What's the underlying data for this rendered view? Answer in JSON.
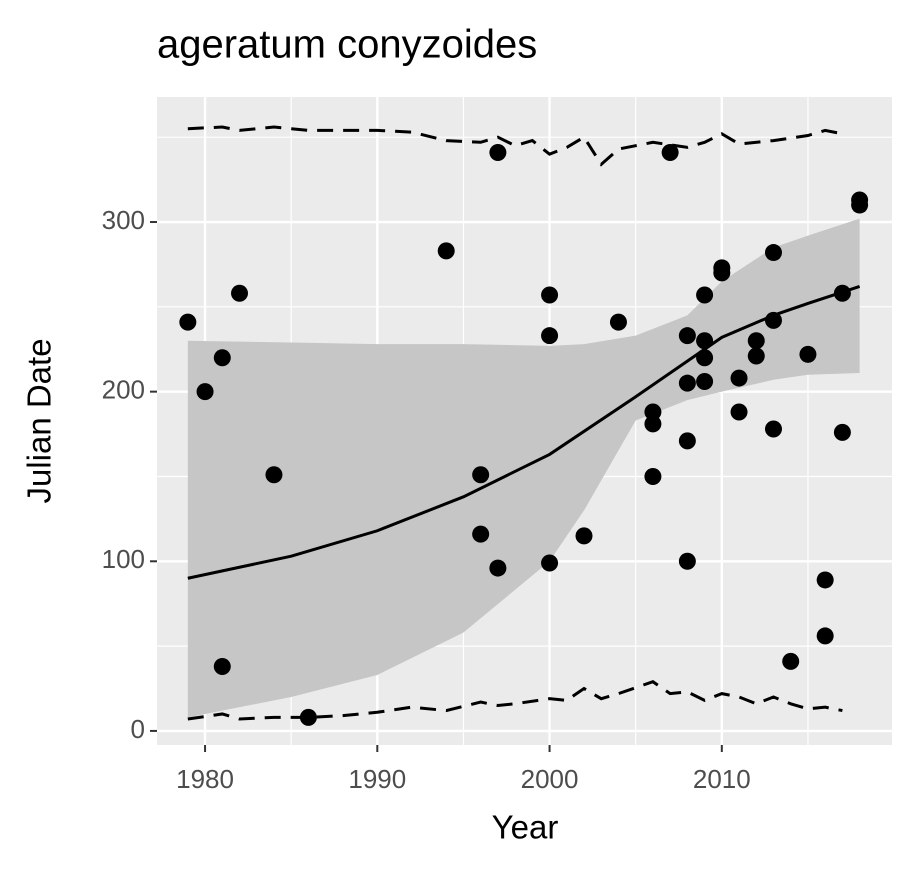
{
  "chart_data": {
    "type": "scatter",
    "title": "ageratum conyzoides",
    "x_label": "Year",
    "y_label": "Julian Date",
    "xlim": [
      1977.21,
      2019.88
    ],
    "ylim": [
      -8.3,
      373.7
    ],
    "xticks": [
      1980,
      1990,
      2000,
      2010
    ],
    "yticks": [
      0,
      100,
      200,
      300
    ],
    "grid": true,
    "series": [
      {
        "type": "ribbon",
        "color": "#c6c6c6",
        "x": [
          1979,
          1985,
          1990,
          1995,
          2000,
          2002,
          2005,
          2008,
          2010,
          2013,
          2015,
          2018
        ],
        "lower": [
          8,
          20,
          33,
          58,
          100,
          130,
          183,
          195,
          200,
          207,
          210,
          211
        ],
        "upper": [
          230,
          229,
          228,
          228,
          227,
          228,
          233,
          245,
          265,
          285,
          292,
          302
        ]
      },
      {
        "type": "line",
        "color": "#000000",
        "dash": "solid",
        "x": [
          1979,
          1985,
          1990,
          1995,
          2000,
          2005,
          2008,
          2010,
          2013,
          2015,
          2018
        ],
        "values": [
          90,
          103,
          118,
          138,
          163,
          197,
          218,
          232,
          245,
          252,
          262
        ]
      },
      {
        "type": "line",
        "color": "#000000",
        "dash": "dashed",
        "x": [
          1979,
          1981,
          1982,
          1984,
          1986,
          1990,
          1992,
          1994,
          1996,
          1997,
          1998,
          1999,
          2000,
          2001,
          2002,
          2003,
          2004,
          2006,
          2008,
          2009,
          2010,
          2011,
          2013,
          2015,
          2016,
          2017
        ],
        "values": [
          355,
          356,
          354,
          356,
          354,
          354,
          353,
          348,
          347,
          350,
          345,
          348,
          340,
          344,
          350,
          334,
          343,
          347,
          344,
          347,
          352,
          346,
          348,
          351,
          354,
          352
        ]
      },
      {
        "type": "line",
        "color": "#000000",
        "dash": "dashed",
        "x": [
          1979,
          1981,
          1982,
          1984,
          1986,
          1988,
          1990,
          1992,
          1994,
          1996,
          1997,
          1998,
          2000,
          2001,
          2002,
          2003,
          2004,
          2006,
          2007,
          2008,
          2009,
          2010,
          2011,
          2012,
          2013,
          2014,
          2015,
          2016,
          2017
        ],
        "values": [
          7,
          10,
          7,
          8,
          8,
          9,
          11,
          14,
          12,
          17,
          15,
          16,
          19,
          18,
          25,
          19,
          22,
          29,
          22,
          23,
          18,
          22,
          20,
          16,
          20,
          16,
          13,
          14,
          12
        ]
      },
      {
        "type": "scatter",
        "color": "#000000",
        "x": [
          1979,
          1980,
          1981,
          1981,
          1982,
          1984,
          1986,
          1994,
          1996,
          1996,
          1997,
          1997,
          2000,
          2000,
          2000,
          2002,
          2004,
          2006,
          2006,
          2006,
          2007,
          2008,
          2008,
          2008,
          2008,
          2009,
          2009,
          2009,
          2009,
          2010,
          2010,
          2011,
          2011,
          2012,
          2012,
          2013,
          2013,
          2013,
          2014,
          2015,
          2016,
          2016,
          2017,
          2017,
          2018,
          2018
        ],
        "values": [
          241,
          200,
          220,
          38,
          258,
          151,
          8,
          283,
          151,
          116,
          341,
          96,
          257,
          233,
          99,
          115,
          241,
          188,
          181,
          150,
          341,
          233,
          205,
          171,
          100,
          257,
          230,
          220,
          206,
          273,
          270,
          208,
          188,
          230,
          221,
          282,
          242,
          178,
          41,
          222,
          89,
          56,
          258,
          176,
          313,
          310
        ]
      }
    ]
  }
}
